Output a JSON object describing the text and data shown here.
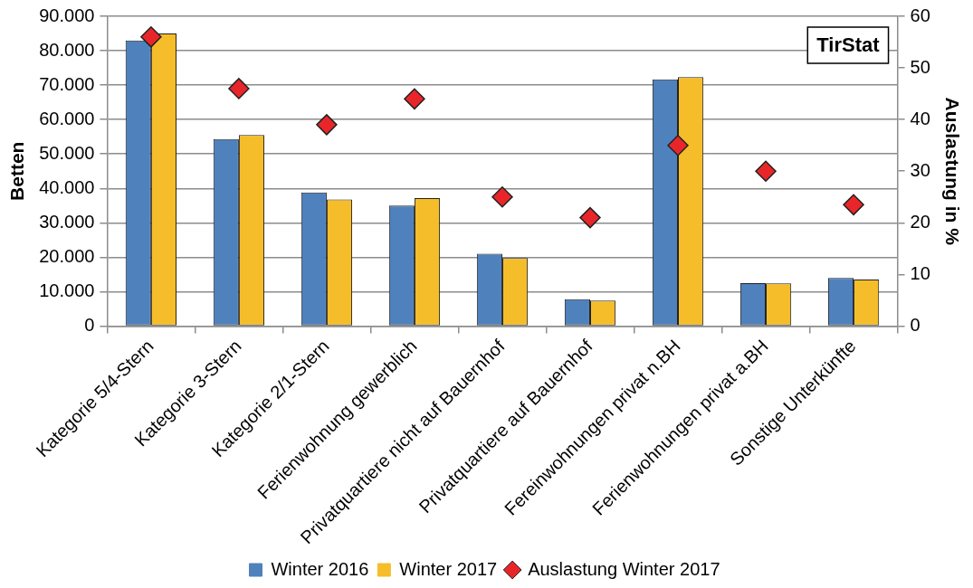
{
  "chart_data": {
    "type": "bar",
    "ylabel": "Betten",
    "y2label": "Auslastung in %",
    "categories": [
      "Kategorie 5/4-Stern",
      "Kategorie 3-Stern",
      "Kategorie 2/1-Stern",
      "Ferienwohnung gewerblich",
      "Privatquartiere nicht auf Bauernhof",
      "Privatquartiere auf Bauernhof",
      "Fereinwohnungen privat n.BH",
      "Ferienwohnungen privat a.BH",
      "Sonstige Unterkünfte"
    ],
    "series": [
      {
        "name": "Winter 2016",
        "color": "#4f81bd",
        "values": [
          83000,
          54300,
          38800,
          35000,
          21000,
          7800,
          71700,
          12500,
          14000
        ]
      },
      {
        "name": "Winter 2017",
        "color": "#f5bd2a",
        "values": [
          85000,
          55500,
          36800,
          37200,
          19800,
          7400,
          72300,
          12400,
          13500
        ]
      },
      {
        "name": "Auslastung Winter 2017",
        "type": "scatter",
        "axis": "y2",
        "marker": "diamond",
        "color": "#e8262a",
        "x": [
          "Kategorie 5/4-Stern",
          "Kategorie 3-Stern",
          "Kategorie 2/1-Stern",
          "Ferienwohnung gewerblich",
          "Privatquartiere nicht auf Bauernhof",
          "Privatquartiere auf Bauernhof",
          "Fereinwohnungen privat n.BH",
          "Ferienwohnungen privat a.BH",
          "Sonstige Unterkünfte"
        ],
        "values": [
          56,
          46,
          39,
          44,
          25,
          21,
          35,
          30,
          23.5
        ]
      }
    ],
    "ylim": [
      0,
      90000
    ],
    "yticks": [
      0,
      {
        "value": 10000,
        "label": "10.000"
      },
      {
        "value": 20000,
        "label": "20.000"
      },
      {
        "value": 30000,
        "label": "30.000"
      },
      {
        "value": 40000,
        "label": "40.000"
      },
      {
        "value": 50000,
        "label": "50.000"
      },
      {
        "value": 60000,
        "label": "60.000"
      },
      {
        "value": 70000,
        "label": "70.000"
      },
      {
        "value": 80000,
        "label": "80.000"
      },
      {
        "value": 90000,
        "label": "90.000"
      }
    ],
    "y2lim": [
      0,
      60
    ],
    "y2ticks": [
      0,
      10,
      20,
      30,
      40,
      50,
      60
    ],
    "grid": "y",
    "legend": "bottom",
    "annotations": [
      "TirStat"
    ]
  }
}
